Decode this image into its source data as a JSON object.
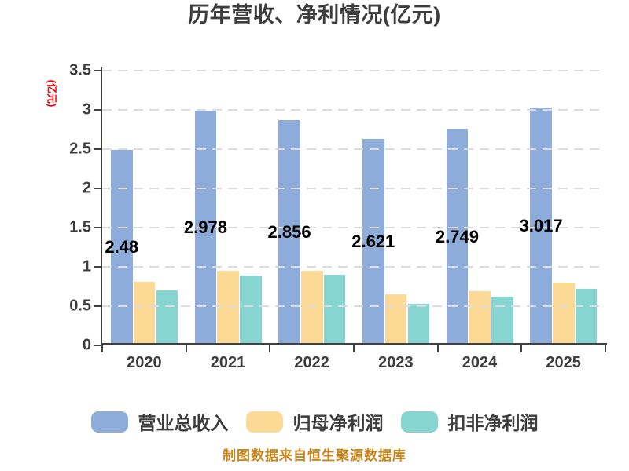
{
  "chart_data": {
    "type": "bar",
    "title": "历年营收、净利情况(亿元)",
    "y_axis_name": "(亿元)",
    "y_axis_name_color": "#ee0000",
    "categories": [
      "2020",
      "2021",
      "2022",
      "2023",
      "2024",
      "2025"
    ],
    "series": [
      {
        "name": "营业总收入",
        "color": "#8DACD9",
        "values": [
          2.48,
          2.978,
          2.856,
          2.621,
          2.749,
          3.017
        ],
        "data_labels": [
          "2.48",
          "2.978",
          "2.856",
          "2.621",
          "2.749",
          "3.017"
        ]
      },
      {
        "name": "归母净利润",
        "color": "#FCD995",
        "values": [
          0.8,
          0.94,
          0.94,
          0.64,
          0.68,
          0.79
        ]
      },
      {
        "name": "扣非净利润",
        "color": "#87D5D0",
        "values": [
          0.69,
          0.88,
          0.89,
          0.52,
          0.61,
          0.71
        ]
      }
    ],
    "ylim": [
      0,
      3.5
    ],
    "y_ticks": [
      "0",
      "0.5",
      "1",
      "1.5",
      "2",
      "2.5",
      "3",
      "3.5"
    ],
    "grid": "horizontal-dashed",
    "legend_position": "bottom"
  },
  "footer": {
    "source_note": "制图数据来自恒生聚源数据库"
  }
}
